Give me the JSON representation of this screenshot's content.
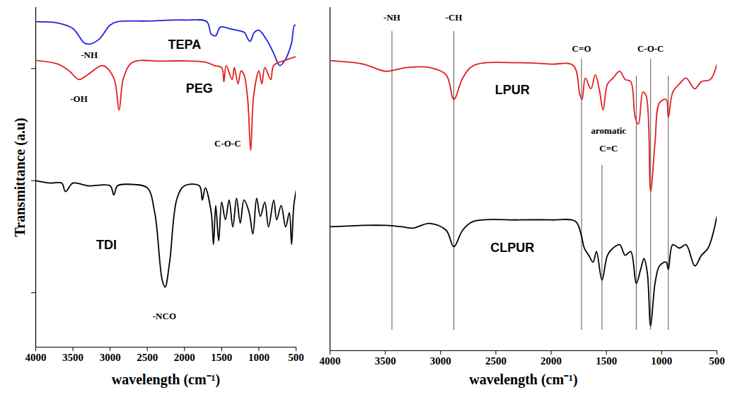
{
  "chart_data": [
    {
      "type": "line",
      "x_label": "wavelength (cm⁻¹)",
      "y_label": "Transmittance (a.u)",
      "xlim": [
        4000,
        500
      ],
      "xticks": [
        4000,
        3500,
        3000,
        2500,
        2000,
        1500,
        1000,
        500
      ],
      "ylim": [
        0,
        100
      ],
      "yticks": [
        16,
        49,
        82
      ],
      "tick_labels": "x",
      "series": [
        {
          "name": "TEPA",
          "color": "#1f1fe0",
          "label_x": 2000,
          "label_y": 89,
          "x": [
            4000,
            3700,
            3500,
            3350,
            3280,
            3150,
            3000,
            2900,
            2500,
            2000,
            1700,
            1640,
            1580,
            1520,
            1400,
            1300,
            1200,
            1120,
            1060,
            1000,
            900,
            800,
            720,
            650,
            560,
            520,
            480
          ],
          "values": [
            95.8,
            95.4,
            93.8,
            89.6,
            89.2,
            90.6,
            94.8,
            95.8,
            96.0,
            96.3,
            95.8,
            92.1,
            91.7,
            94.2,
            93.8,
            93.3,
            92.7,
            90.0,
            92.7,
            93.3,
            90.6,
            86.5,
            82.9,
            84.4,
            89.6,
            94.8,
            94.2
          ]
        },
        {
          "name": "PEG",
          "color": "#e01f1f",
          "label_x": 1800,
          "label_y": 76,
          "x": [
            4000,
            3700,
            3550,
            3420,
            3300,
            3100,
            2950,
            2880,
            2820,
            2700,
            2300,
            1900,
            1700,
            1600,
            1500,
            1470,
            1440,
            1360,
            1330,
            1280,
            1240,
            1200,
            1150,
            1110,
            1070,
            1000,
            960,
            920,
            840,
            800,
            650,
            520,
            450
          ],
          "values": [
            84.4,
            83.3,
            81.3,
            78.8,
            80.2,
            82.9,
            79.2,
            69.8,
            79.2,
            83.8,
            84.2,
            84.2,
            83.8,
            82.9,
            82.3,
            78.1,
            82.9,
            78.8,
            82.3,
            77.5,
            81.3,
            80.2,
            72.9,
            57.9,
            74.0,
            81.3,
            77.5,
            82.3,
            78.8,
            82.9,
            84.4,
            85.4,
            85.8
          ]
        },
        {
          "name": "TDI",
          "color": "#000000",
          "label_x": 3050,
          "label_y": 30,
          "x": [
            4000,
            3800,
            3650,
            3600,
            3500,
            3300,
            3000,
            2950,
            2900,
            2700,
            2500,
            2400,
            2300,
            2260,
            2200,
            2100,
            2000,
            1800,
            1760,
            1720,
            1640,
            1610,
            1580,
            1540,
            1500,
            1450,
            1400,
            1350,
            1300,
            1250,
            1200,
            1130,
            1080,
            1030,
            980,
            920,
            870,
            800,
            760,
            700,
            640,
            590,
            560,
            530,
            480
          ],
          "values": [
            49.0,
            48.3,
            48.3,
            45.8,
            48.3,
            47.5,
            47.5,
            44.8,
            47.5,
            47.9,
            46.9,
            39.6,
            19.8,
            17.7,
            25.0,
            43.8,
            47.5,
            47.5,
            43.3,
            46.9,
            39.6,
            30.2,
            41.7,
            31.3,
            42.7,
            37.5,
            43.3,
            35.4,
            43.8,
            36.5,
            43.3,
            39.6,
            33.3,
            43.8,
            38.5,
            42.7,
            35.4,
            43.3,
            37.5,
            41.7,
            35.4,
            39.6,
            30.2,
            41.7,
            48.3
          ]
        }
      ],
      "annotations": [
        {
          "text": "-NH",
          "x": 3280,
          "y": 86
        },
        {
          "text": "-OH",
          "x": 3420,
          "y": 73
        },
        {
          "text": "C-O-C",
          "x": 1420,
          "y": 60
        },
        {
          "text": "-NCO",
          "x": 2270,
          "y": 9
        }
      ]
    },
    {
      "type": "line",
      "x_label": "wavelength (cm⁻¹)",
      "xlim": [
        4000,
        500
      ],
      "xticks": [
        4000,
        3500,
        3000,
        2500,
        2000,
        1500,
        1000,
        500
      ],
      "ylim": [
        0,
        100
      ],
      "tick_labels": "x",
      "series": [
        {
          "name": "LPUR",
          "color": "#e01f1f",
          "label_x": 2350,
          "label_y": 76,
          "x": [
            4000,
            3700,
            3500,
            3400,
            3300,
            3100,
            2950,
            2880,
            2800,
            2700,
            2300,
            2000,
            1800,
            1740,
            1720,
            1690,
            1640,
            1600,
            1560,
            1530,
            1490,
            1440,
            1380,
            1330,
            1280,
            1240,
            1210,
            1170,
            1140,
            1100,
            1060,
            1020,
            960,
            940,
            900,
            840,
            780,
            700,
            640,
            560,
            500
          ],
          "values": [
            84.5,
            83.5,
            81.4,
            81.9,
            82.5,
            82.5,
            80.4,
            73.2,
            79.4,
            83.1,
            83.9,
            83.5,
            83.1,
            74.6,
            73.2,
            79.4,
            76.3,
            80.4,
            75.3,
            70.1,
            77.7,
            79.4,
            81.4,
            79.0,
            78.4,
            68.0,
            66.0,
            75.3,
            74.2,
            46.4,
            60.8,
            72.2,
            73.2,
            68.0,
            75.3,
            77.7,
            79.4,
            76.3,
            78.4,
            79.0,
            83.5
          ]
        },
        {
          "name": "CLPUR",
          "color": "#000000",
          "label_x": 2350,
          "label_y": 30,
          "x": [
            4000,
            3700,
            3500,
            3350,
            3250,
            3100,
            2950,
            2880,
            2800,
            2700,
            2300,
            2000,
            1780,
            1730,
            1700,
            1660,
            1620,
            1590,
            1540,
            1490,
            1440,
            1380,
            1330,
            1280,
            1230,
            1190,
            1160,
            1130,
            1100,
            1060,
            1020,
            960,
            940,
            900,
            840,
            780,
            700,
            640,
            580,
            500
          ],
          "values": [
            36.1,
            36.5,
            36.5,
            36.1,
            35.7,
            37.1,
            35.1,
            30.3,
            35.1,
            37.7,
            38.1,
            38.1,
            37.7,
            34.0,
            29.9,
            27.8,
            25.8,
            28.9,
            20.6,
            27.8,
            29.9,
            30.9,
            27.8,
            28.9,
            19.6,
            23.7,
            26.8,
            22.7,
            7.2,
            19.6,
            24.7,
            25.8,
            23.7,
            30.9,
            29.9,
            30.9,
            24.7,
            27.8,
            29.9,
            39.2
          ]
        }
      ],
      "reference_lines": [
        {
          "x": 3440,
          "from": 6,
          "to": 93
        },
        {
          "x": 2880,
          "from": 6,
          "to": 93
        },
        {
          "x": 1725,
          "from": 6,
          "to": 85
        },
        {
          "x": 1540,
          "from": 6,
          "to": 54
        },
        {
          "x": 1230,
          "from": 6,
          "to": 80
        },
        {
          "x": 1100,
          "from": 6,
          "to": 85
        },
        {
          "x": 940,
          "from": 6,
          "to": 80
        }
      ],
      "annotations": [
        {
          "text": "-NH",
          "x": 3440,
          "y": 97
        },
        {
          "text": "-CH",
          "x": 2880,
          "y": 97
        },
        {
          "text": "C=O",
          "x": 1725,
          "y": 88
        },
        {
          "text": "aromatic",
          "x": 1480,
          "y": 64
        },
        {
          "text": "C=C",
          "x": 1480,
          "y": 59
        },
        {
          "text": "C-O-C",
          "x": 1100,
          "y": 88
        }
      ]
    }
  ]
}
